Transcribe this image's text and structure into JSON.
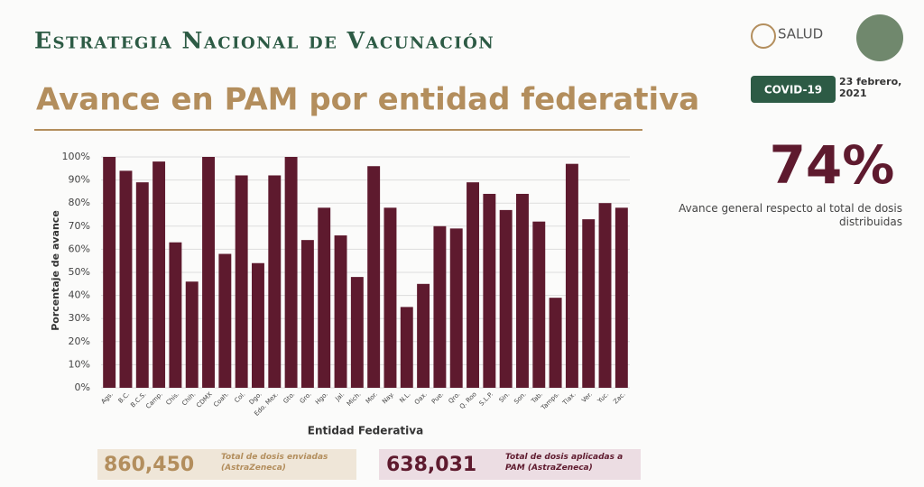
{
  "header": {
    "program": "Estrategia Nacional de Vacunación",
    "title": "Avance en PAM por entidad federativa",
    "agency": "SALUD",
    "badge": "COVID-19",
    "date": "23 febrero, 2021"
  },
  "summary": {
    "value": "74%",
    "caption": "Avance general respecto al total de dosis distribuidas"
  },
  "totals": [
    {
      "value": "860,450",
      "caption": "Total de dosis enviadas (AstraZeneca)"
    },
    {
      "value": "638,031",
      "caption": "Total de dosis aplicadas a PAM (AstraZeneca)"
    }
  ],
  "chart_data": {
    "type": "bar",
    "x_label": "Entidad Federativa",
    "y_label": "Porcentaje de avance",
    "categories": [
      "Ags.",
      "B.C.",
      "B.C.S.",
      "Camp.",
      "Chis.",
      "Chih.",
      "CDMX",
      "Coah.",
      "Col.",
      "Dgo.",
      "Edo. Mex.",
      "Gto.",
      "Gro.",
      "Hgo.",
      "Jal.",
      "Mich.",
      "Mor.",
      "Nay.",
      "N.L.",
      "Oax.",
      "Pue.",
      "Qro.",
      "Q. Roo",
      "S.L.P.",
      "Sin.",
      "Son.",
      "Tab.",
      "Tamps.",
      "Tlax.",
      "Ver.",
      "Yuc.",
      "Zac."
    ],
    "values": [
      100,
      94,
      89,
      98,
      63,
      46,
      100,
      58,
      92,
      54,
      92,
      100,
      64,
      78,
      66,
      48,
      96,
      78,
      35,
      45,
      70,
      69,
      89,
      84,
      77,
      84,
      72,
      39,
      97,
      73,
      80,
      78
    ],
    "color": "#5e1a2e",
    "grid": true,
    "ylim": [
      0,
      100
    ],
    "yticks": [
      {
        "value": 0,
        "label": "0%"
      },
      {
        "value": 10,
        "label": "10%"
      },
      {
        "value": 20,
        "label": "20%"
      },
      {
        "value": 30,
        "label": "30%"
      },
      {
        "value": 40,
        "label": "40%"
      },
      {
        "value": 50,
        "label": "50%"
      },
      {
        "value": 60,
        "label": "60%"
      },
      {
        "value": 70,
        "label": "70%"
      },
      {
        "value": 80,
        "label": "80%"
      },
      {
        "value": 90,
        "label": "90%"
      },
      {
        "value": 100,
        "label": "100%"
      }
    ]
  }
}
